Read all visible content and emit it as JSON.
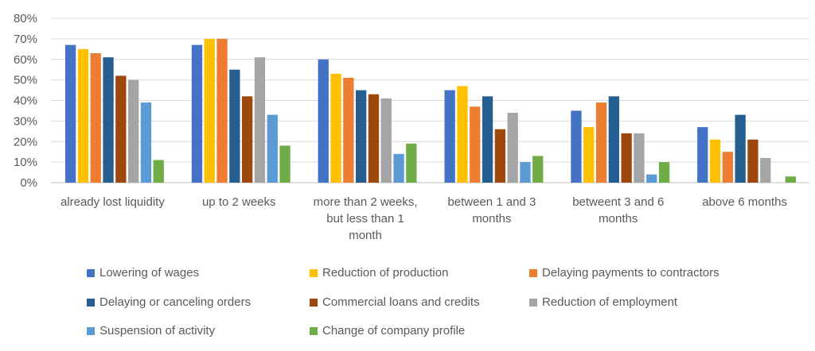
{
  "chart_data": {
    "type": "bar",
    "categories": [
      [
        "already lost liquidity"
      ],
      [
        "up to 2 weeks"
      ],
      [
        "more than 2 weeks,",
        "but less than 1",
        "month"
      ],
      [
        "between 1 and 3",
        "months"
      ],
      [
        "betweent 3 and 6",
        "months"
      ],
      [
        "above 6 months"
      ]
    ],
    "ylim": [
      0,
      80
    ],
    "yticks": [
      "0%",
      "10%",
      "20%",
      "30%",
      "40%",
      "50%",
      "60%",
      "70%",
      "80%"
    ],
    "grid": true,
    "legend_position": "bottom",
    "series": [
      {
        "name": "Lowering of wages",
        "color": "#4472C4",
        "values": [
          67,
          67,
          60,
          45,
          35,
          27
        ]
      },
      {
        "name": "Reduction of production",
        "color": "#FFC000",
        "values": [
          65,
          70,
          53,
          47,
          27,
          21
        ]
      },
      {
        "name": "Delaying payments to contractors",
        "color": "#ED7D31",
        "values": [
          63,
          70,
          51,
          37,
          39,
          15
        ]
      },
      {
        "name": "Delaying or canceling orders",
        "color": "#255E91",
        "values": [
          61,
          55,
          45,
          42,
          42,
          33
        ]
      },
      {
        "name": "Commercial loans and credits",
        "color": "#9E480E",
        "values": [
          52,
          42,
          43,
          26,
          24,
          21
        ]
      },
      {
        "name": "Reduction of employment",
        "color": "#A5A5A5",
        "values": [
          50,
          61,
          41,
          34,
          24,
          12
        ]
      },
      {
        "name": "Suspension of activity",
        "color": "#5B9BD5",
        "values": [
          39,
          33,
          14,
          10,
          4,
          0
        ]
      },
      {
        "name": "Change of company profile",
        "color": "#70AD47",
        "values": [
          11,
          18,
          19,
          13,
          10,
          3
        ]
      }
    ]
  }
}
